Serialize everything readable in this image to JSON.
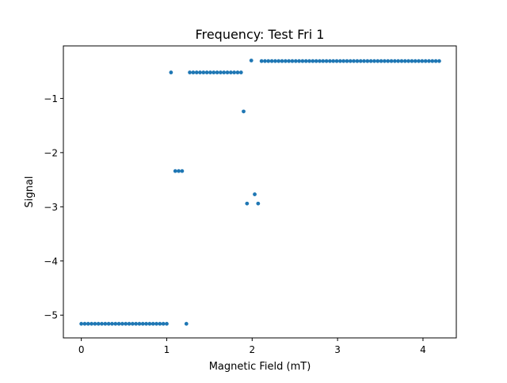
{
  "chart_data": {
    "type": "scatter",
    "title": "Frequency: Test Fri 1",
    "xlabel": "Magnetic Field (mT)",
    "ylabel": "Signal",
    "xlim": [
      -0.21,
      4.39
    ],
    "ylim": [
      -5.42,
      -0.03
    ],
    "xticks": [
      0,
      1,
      2,
      3,
      4
    ],
    "xtick_labels": [
      "0",
      "1",
      "2",
      "3",
      "4"
    ],
    "yticks": [
      -1,
      -2,
      -3,
      -4,
      -5
    ],
    "ytick_labels": [
      "−1",
      "−2",
      "−3",
      "−4",
      "−5"
    ],
    "grid": false,
    "legend": "none",
    "marker_color": "#1f77b4",
    "series": [
      {
        "points": [
          [
            0.0,
            -5.16
          ],
          [
            0.04,
            -5.16
          ],
          [
            0.08,
            -5.16
          ],
          [
            0.12,
            -5.16
          ],
          [
            0.16,
            -5.16
          ],
          [
            0.2,
            -5.16
          ],
          [
            0.24,
            -5.16
          ],
          [
            0.28,
            -5.16
          ],
          [
            0.32,
            -5.16
          ],
          [
            0.36,
            -5.16
          ],
          [
            0.4,
            -5.16
          ],
          [
            0.44,
            -5.16
          ],
          [
            0.48,
            -5.16
          ],
          [
            0.52,
            -5.16
          ],
          [
            0.56,
            -5.16
          ],
          [
            0.6,
            -5.16
          ],
          [
            0.64,
            -5.16
          ],
          [
            0.68,
            -5.16
          ],
          [
            0.72,
            -5.16
          ],
          [
            0.76,
            -5.16
          ],
          [
            0.8,
            -5.16
          ],
          [
            0.84,
            -5.16
          ],
          [
            0.88,
            -5.16
          ],
          [
            0.92,
            -5.16
          ],
          [
            0.96,
            -5.16
          ],
          [
            1.0,
            -5.16
          ],
          [
            1.05,
            -0.52
          ],
          [
            1.1,
            -2.34
          ],
          [
            1.14,
            -2.34
          ],
          [
            1.18,
            -2.34
          ],
          [
            1.23,
            -5.16
          ],
          [
            1.27,
            -0.52
          ],
          [
            1.31,
            -0.52
          ],
          [
            1.35,
            -0.52
          ],
          [
            1.39,
            -0.52
          ],
          [
            1.43,
            -0.52
          ],
          [
            1.47,
            -0.52
          ],
          [
            1.51,
            -0.52
          ],
          [
            1.55,
            -0.52
          ],
          [
            1.59,
            -0.52
          ],
          [
            1.63,
            -0.52
          ],
          [
            1.67,
            -0.52
          ],
          [
            1.71,
            -0.52
          ],
          [
            1.75,
            -0.52
          ],
          [
            1.79,
            -0.52
          ],
          [
            1.83,
            -0.52
          ],
          [
            1.87,
            -0.52
          ],
          [
            1.9,
            -1.24
          ],
          [
            1.94,
            -2.94
          ],
          [
            1.99,
            -0.3
          ],
          [
            2.03,
            -2.77
          ],
          [
            2.07,
            -2.94
          ],
          [
            2.11,
            -0.31
          ],
          [
            2.15,
            -0.31
          ],
          [
            2.19,
            -0.31
          ],
          [
            2.23,
            -0.31
          ],
          [
            2.27,
            -0.31
          ],
          [
            2.31,
            -0.31
          ],
          [
            2.35,
            -0.31
          ],
          [
            2.39,
            -0.31
          ],
          [
            2.43,
            -0.31
          ],
          [
            2.47,
            -0.31
          ],
          [
            2.51,
            -0.31
          ],
          [
            2.55,
            -0.31
          ],
          [
            2.59,
            -0.31
          ],
          [
            2.63,
            -0.31
          ],
          [
            2.67,
            -0.31
          ],
          [
            2.71,
            -0.31
          ],
          [
            2.75,
            -0.31
          ],
          [
            2.79,
            -0.31
          ],
          [
            2.83,
            -0.31
          ],
          [
            2.87,
            -0.31
          ],
          [
            2.91,
            -0.31
          ],
          [
            2.95,
            -0.31
          ],
          [
            2.99,
            -0.31
          ],
          [
            3.03,
            -0.31
          ],
          [
            3.07,
            -0.31
          ],
          [
            3.11,
            -0.31
          ],
          [
            3.15,
            -0.31
          ],
          [
            3.19,
            -0.31
          ],
          [
            3.23,
            -0.31
          ],
          [
            3.27,
            -0.31
          ],
          [
            3.31,
            -0.31
          ],
          [
            3.35,
            -0.31
          ],
          [
            3.39,
            -0.31
          ],
          [
            3.43,
            -0.31
          ],
          [
            3.47,
            -0.31
          ],
          [
            3.51,
            -0.31
          ],
          [
            3.55,
            -0.31
          ],
          [
            3.59,
            -0.31
          ],
          [
            3.63,
            -0.31
          ],
          [
            3.67,
            -0.31
          ],
          [
            3.71,
            -0.31
          ],
          [
            3.75,
            -0.31
          ],
          [
            3.79,
            -0.31
          ],
          [
            3.83,
            -0.31
          ],
          [
            3.87,
            -0.31
          ],
          [
            3.91,
            -0.31
          ],
          [
            3.95,
            -0.31
          ],
          [
            3.99,
            -0.31
          ],
          [
            4.03,
            -0.31
          ],
          [
            4.07,
            -0.31
          ],
          [
            4.11,
            -0.31
          ],
          [
            4.15,
            -0.31
          ],
          [
            4.19,
            -0.31
          ]
        ]
      }
    ]
  }
}
